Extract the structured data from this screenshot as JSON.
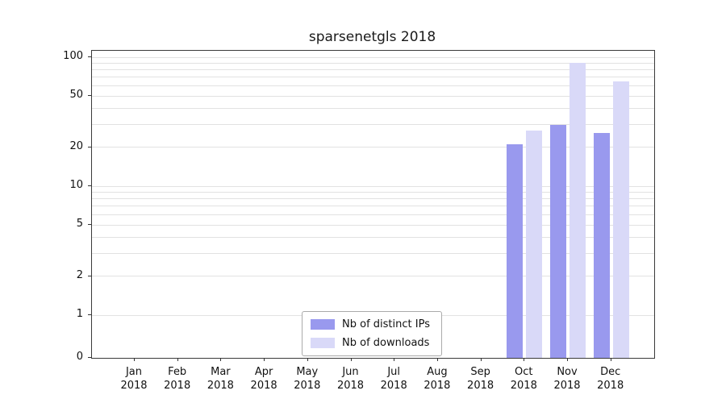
{
  "title": "sparsenetgls 2018",
  "chart_data": {
    "type": "bar",
    "title": "sparsenetgls 2018",
    "year": "2018",
    "categories": [
      "Jan",
      "Feb",
      "Mar",
      "Apr",
      "May",
      "Jun",
      "Jul",
      "Aug",
      "Sep",
      "Oct",
      "Nov",
      "Dec"
    ],
    "series": [
      {
        "name": "Nb of distinct IPs",
        "color": "#9999ee",
        "values": [
          0,
          0,
          0,
          0,
          0,
          0,
          0,
          0,
          0,
          21,
          30,
          26
        ]
      },
      {
        "name": "Nb of downloads",
        "color": "#d9d9f8",
        "values": [
          0,
          0,
          0,
          0,
          0,
          0,
          0,
          0,
          0,
          27,
          90,
          65
        ]
      }
    ],
    "yscale": "log",
    "yticks": [
      0,
      1,
      2,
      5,
      10,
      20,
      50,
      100
    ],
    "grid_values": [
      1,
      2,
      3,
      4,
      5,
      6,
      7,
      8,
      9,
      10,
      20,
      30,
      40,
      50,
      60,
      70,
      80,
      90,
      100
    ],
    "ylim": [
      0,
      110
    ],
    "legend_position": "lower center",
    "grid_on": true,
    "grid_color": "#e2e2e2",
    "axis_color": "#3a3a3a",
    "legend_border_color": "#aaaaaa"
  }
}
